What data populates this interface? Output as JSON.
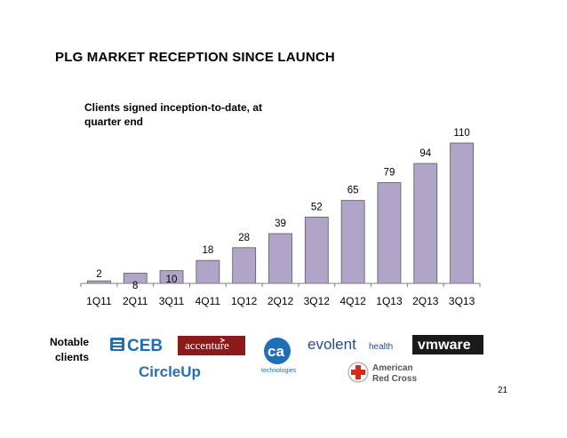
{
  "slide": {
    "title": "PLG MARKET RECEPTION SINCE LAUNCH",
    "page_number": "21"
  },
  "chart_data": {
    "type": "bar",
    "title": "Clients signed inception-to-date, at quarter end",
    "categories": [
      "1Q11",
      "2Q11",
      "3Q11",
      "4Q11",
      "1Q12",
      "2Q12",
      "3Q12",
      "4Q12",
      "1Q13",
      "2Q13",
      "3Q13"
    ],
    "values": [
      2,
      8,
      10,
      18,
      28,
      39,
      52,
      65,
      79,
      94,
      110
    ],
    "xlabel": "",
    "ylabel": "",
    "ylim": [
      0,
      110
    ],
    "bar_color": "#b0a4c9",
    "bar_edge_color": "#595959",
    "grid": false
  },
  "clients": {
    "label": "Notable clients",
    "logos": {
      "ceb": "CEB",
      "accenture": "accenture",
      "ca_main": "ca",
      "ca_sub": "technologies",
      "evolent_main": "evolent",
      "evolent_sub": "health",
      "vmware": "vmware",
      "circleup": "CircleUp",
      "redcross_line1": "American",
      "redcross_line2": "Red Cross"
    },
    "colors": {
      "ceb_blue": "#1f6fb5",
      "accenture_red": "#8b1a1a",
      "ca_blue": "#1e6fb8",
      "evolent_blue": "#2b4a8c",
      "vmware_bg": "#1a1a1a",
      "circleup_blue": "#2a6eb5",
      "redcross_red": "#d52b1e"
    }
  }
}
